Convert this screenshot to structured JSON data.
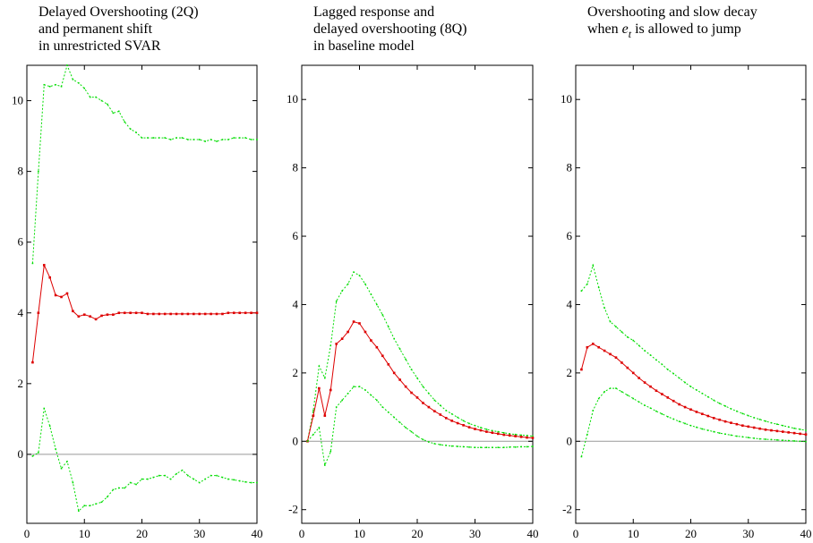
{
  "chart_data": [
    {
      "type": "line",
      "title": [
        "Delayed Overshooting (2Q)",
        "and permanent shift",
        "in unrestricted SVAR"
      ],
      "x": [
        1,
        2,
        3,
        4,
        5,
        6,
        7,
        8,
        9,
        10,
        11,
        12,
        13,
        14,
        15,
        16,
        17,
        18,
        19,
        20,
        21,
        22,
        23,
        24,
        25,
        26,
        27,
        28,
        29,
        30,
        31,
        32,
        33,
        34,
        35,
        36,
        37,
        38,
        39,
        40
      ],
      "xlim": [
        0,
        40
      ],
      "xticks": [
        0,
        10,
        20,
        30,
        40
      ],
      "ylim": [
        -1.95,
        11
      ],
      "yticks": [
        0,
        2,
        4,
        6,
        8,
        10
      ],
      "zero_line": true,
      "series": [
        {
          "color": "#00dd00",
          "style": "dotted",
          "values": [
            5.4,
            8.0,
            10.45,
            10.4,
            10.45,
            10.4,
            11.0,
            10.6,
            10.5,
            10.35,
            10.1,
            10.1,
            10.0,
            9.9,
            9.65,
            9.7,
            9.4,
            9.2,
            9.1,
            8.95,
            8.95,
            8.95,
            8.95,
            8.95,
            8.9,
            8.95,
            8.95,
            8.9,
            8.9,
            8.9,
            8.85,
            8.9,
            8.85,
            8.9,
            8.9,
            8.95,
            8.95,
            8.95,
            8.9,
            8.9
          ]
        },
        {
          "color": "#dd0000",
          "style": "solid",
          "values": [
            2.6,
            4.0,
            5.35,
            5.0,
            4.5,
            4.45,
            4.55,
            4.05,
            3.9,
            3.95,
            3.9,
            3.82,
            3.92,
            3.95,
            3.95,
            4.0,
            4.0,
            4.0,
            4.0,
            4.0,
            3.97,
            3.97,
            3.97,
            3.97,
            3.97,
            3.97,
            3.97,
            3.97,
            3.97,
            3.97,
            3.97,
            3.97,
            3.97,
            3.97,
            4.0,
            4.0,
            4.0,
            4.0,
            4.0,
            4.0
          ]
        },
        {
          "color": "#00dd00",
          "style": "dotted",
          "values": [
            -0.05,
            0.05,
            1.3,
            0.8,
            0.15,
            -0.4,
            -0.2,
            -0.8,
            -1.6,
            -1.45,
            -1.45,
            -1.4,
            -1.35,
            -1.2,
            -1.0,
            -0.95,
            -0.95,
            -0.8,
            -0.85,
            -0.7,
            -0.7,
            -0.65,
            -0.6,
            -0.6,
            -0.7,
            -0.55,
            -0.45,
            -0.6,
            -0.7,
            -0.8,
            -0.7,
            -0.6,
            -0.6,
            -0.65,
            -0.7,
            -0.72,
            -0.75,
            -0.78,
            -0.8,
            -0.8
          ]
        }
      ]
    },
    {
      "type": "line",
      "title": [
        "Lagged response and",
        "delayed overshooting (8Q)",
        "in baseline model"
      ],
      "x": [
        1,
        2,
        3,
        4,
        5,
        6,
        7,
        8,
        9,
        10,
        11,
        12,
        13,
        14,
        15,
        16,
        17,
        18,
        19,
        20,
        21,
        22,
        23,
        24,
        25,
        26,
        27,
        28,
        29,
        30,
        31,
        32,
        33,
        34,
        35,
        36,
        37,
        38,
        39,
        40
      ],
      "xlim": [
        0,
        40
      ],
      "xticks": [
        0,
        10,
        20,
        30,
        40
      ],
      "ylim": [
        -2.4,
        11
      ],
      "yticks": [
        -2,
        0,
        2,
        4,
        6,
        8,
        10
      ],
      "zero_line": true,
      "series": [
        {
          "color": "#00dd00",
          "style": "dotted",
          "values": [
            0,
            0.9,
            2.2,
            1.85,
            2.8,
            4.1,
            4.4,
            4.6,
            4.95,
            4.85,
            4.6,
            4.3,
            4.0,
            3.7,
            3.35,
            3.0,
            2.7,
            2.4,
            2.1,
            1.85,
            1.6,
            1.4,
            1.2,
            1.05,
            0.9,
            0.8,
            0.7,
            0.6,
            0.52,
            0.46,
            0.4,
            0.35,
            0.31,
            0.28,
            0.25,
            0.22,
            0.2,
            0.18,
            0.17,
            0.15
          ]
        },
        {
          "color": "#dd0000",
          "style": "solid",
          "values": [
            0,
            0.75,
            1.55,
            0.75,
            1.5,
            2.85,
            3.0,
            3.2,
            3.5,
            3.45,
            3.2,
            2.95,
            2.75,
            2.5,
            2.25,
            2.0,
            1.8,
            1.6,
            1.42,
            1.28,
            1.12,
            1.0,
            0.88,
            0.78,
            0.68,
            0.6,
            0.53,
            0.47,
            0.41,
            0.36,
            0.32,
            0.28,
            0.25,
            0.22,
            0.19,
            0.17,
            0.15,
            0.13,
            0.11,
            0.1
          ]
        },
        {
          "color": "#00dd00",
          "style": "dotted",
          "values": [
            0,
            0.2,
            0.4,
            -0.7,
            -0.3,
            1.0,
            1.2,
            1.4,
            1.6,
            1.6,
            1.5,
            1.35,
            1.2,
            1.0,
            0.85,
            0.7,
            0.55,
            0.4,
            0.28,
            0.15,
            0.05,
            -0.02,
            -0.07,
            -0.1,
            -0.12,
            -0.14,
            -0.15,
            -0.16,
            -0.17,
            -0.18,
            -0.18,
            -0.18,
            -0.18,
            -0.18,
            -0.18,
            -0.17,
            -0.17,
            -0.16,
            -0.16,
            -0.15
          ]
        }
      ]
    },
    {
      "type": "line",
      "title": [
        "Overshooting and slow decay",
        [
          "when ",
          "e",
          "t",
          " is allowed to jump"
        ]
      ],
      "x": [
        1,
        2,
        3,
        4,
        5,
        6,
        7,
        8,
        9,
        10,
        11,
        12,
        13,
        14,
        15,
        16,
        17,
        18,
        19,
        20,
        21,
        22,
        23,
        24,
        25,
        26,
        27,
        28,
        29,
        30,
        31,
        32,
        33,
        34,
        35,
        36,
        37,
        38,
        39,
        40
      ],
      "xlim": [
        0,
        40
      ],
      "xticks": [
        0,
        10,
        20,
        30,
        40
      ],
      "ylim": [
        -2.4,
        11
      ],
      "yticks": [
        -2,
        0,
        2,
        4,
        6,
        8,
        10
      ],
      "zero_line": true,
      "series": [
        {
          "color": "#00dd00",
          "style": "dotted",
          "values": [
            4.4,
            4.6,
            5.15,
            4.5,
            3.9,
            3.5,
            3.35,
            3.2,
            3.05,
            2.95,
            2.8,
            2.65,
            2.52,
            2.38,
            2.25,
            2.1,
            1.98,
            1.85,
            1.72,
            1.6,
            1.5,
            1.4,
            1.3,
            1.2,
            1.11,
            1.03,
            0.95,
            0.88,
            0.81,
            0.75,
            0.69,
            0.64,
            0.59,
            0.54,
            0.5,
            0.46,
            0.42,
            0.38,
            0.35,
            0.32
          ]
        },
        {
          "color": "#dd0000",
          "style": "solid",
          "values": [
            2.1,
            2.75,
            2.85,
            2.75,
            2.65,
            2.55,
            2.45,
            2.3,
            2.15,
            2.0,
            1.85,
            1.72,
            1.6,
            1.48,
            1.38,
            1.28,
            1.18,
            1.08,
            1.0,
            0.93,
            0.86,
            0.8,
            0.74,
            0.68,
            0.63,
            0.58,
            0.54,
            0.5,
            0.46,
            0.43,
            0.4,
            0.37,
            0.34,
            0.32,
            0.3,
            0.28,
            0.26,
            0.24,
            0.22,
            0.2
          ]
        },
        {
          "color": "#00dd00",
          "style": "dotted",
          "values": [
            -0.45,
            0.2,
            0.9,
            1.25,
            1.45,
            1.55,
            1.55,
            1.45,
            1.35,
            1.25,
            1.15,
            1.05,
            0.97,
            0.88,
            0.8,
            0.72,
            0.65,
            0.58,
            0.52,
            0.46,
            0.41,
            0.36,
            0.32,
            0.28,
            0.24,
            0.21,
            0.18,
            0.15,
            0.13,
            0.11,
            0.09,
            0.07,
            0.06,
            0.05,
            0.04,
            0.03,
            0.02,
            0.01,
            0.0,
            -0.01
          ]
        }
      ]
    }
  ]
}
